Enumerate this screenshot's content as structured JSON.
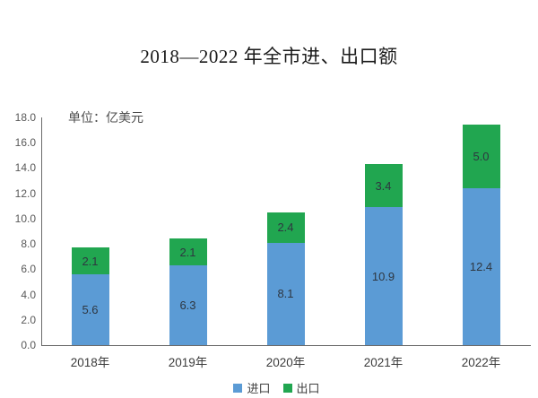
{
  "title": "2018—2022 年全市进、出口额",
  "unit_label": "单位：亿美元",
  "colors": {
    "import_blue": "#5B9BD5",
    "export_green": "#21A650",
    "axis_line": "#6b6b6b",
    "tick_text": "#595959",
    "data_label_text": "#2e3640"
  },
  "legend": [
    {
      "label": "进口",
      "color": "#5B9BD5"
    },
    {
      "label": "出口",
      "color": "#21A650"
    }
  ],
  "chart_data": {
    "type": "bar",
    "stacked": true,
    "title": "2018—2022 年全市进、出口额",
    "unit": "单位：亿美元",
    "categories": [
      "2018年",
      "2019年",
      "2020年",
      "2021年",
      "2022年"
    ],
    "series": [
      {
        "name": "进口",
        "color": "#5B9BD5",
        "values": [
          5.6,
          6.3,
          8.1,
          10.9,
          12.4
        ]
      },
      {
        "name": "出口",
        "color": "#21A650",
        "values": [
          2.1,
          2.1,
          2.4,
          3.4,
          5.0
        ]
      }
    ],
    "totals": [
      7.7,
      8.4,
      10.5,
      14.3,
      17.4
    ],
    "ylim": [
      0,
      18
    ],
    "ytick_step": 2,
    "ytick_labels": [
      "0.0",
      "2.0",
      "4.0",
      "6.0",
      "8.0",
      "10.0",
      "12.0",
      "14.0",
      "16.0",
      "18.0"
    ],
    "grid": false,
    "data_labels": true,
    "legend_position": "bottom"
  }
}
